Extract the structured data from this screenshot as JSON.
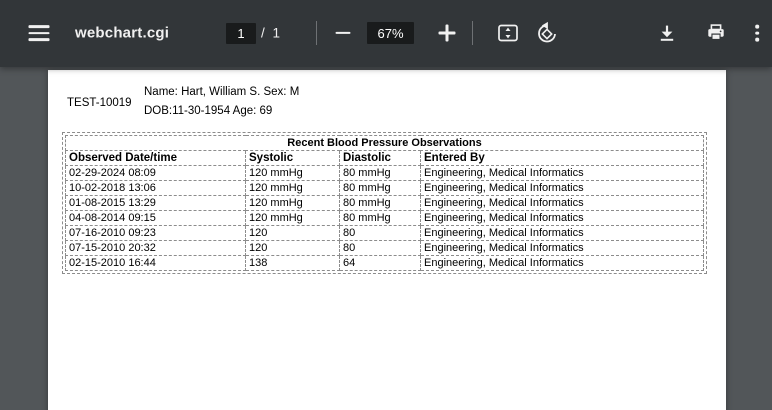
{
  "toolbar": {
    "title": "webchart.cgi",
    "page_current": "1",
    "page_total_label": "/ 1",
    "zoom_level": "67%",
    "icons": {
      "menu": "hamburger-menu",
      "zoom_out": "minus",
      "zoom_in": "plus",
      "fit": "fit-to-page",
      "rotate": "rotate-counterclockwise",
      "download": "download-arrow",
      "print": "printer",
      "more": "vertical-kebab"
    }
  },
  "document": {
    "patient_id": "TEST-10019",
    "name_line": "Name: Hart, William S. Sex: M",
    "dob_line": "DOB:11-30-1954 Age: 69",
    "table": {
      "title": "Recent Blood Pressure Observations",
      "columns": [
        "Observed Date/time",
        "Systolic",
        "Diastolic",
        "Entered By"
      ],
      "rows": [
        [
          "02-29-2024 08:09",
          "120 mmHg",
          "80 mmHg",
          "Engineering, Medical Informatics"
        ],
        [
          "10-02-2018 13:06",
          "120 mmHg",
          "80 mmHg",
          "Engineering, Medical Informatics"
        ],
        [
          "01-08-2015 13:29",
          "120 mmHg",
          "80 mmHg",
          "Engineering, Medical Informatics"
        ],
        [
          "04-08-2014 09:15",
          "120 mmHg",
          "80 mmHg",
          "Engineering, Medical Informatics"
        ],
        [
          "07-16-2010 09:23",
          "120",
          "80",
          "Engineering, Medical Informatics"
        ],
        [
          "07-15-2010 20:32",
          "120",
          "80",
          "Engineering, Medical Informatics"
        ],
        [
          "02-15-2010 16:44",
          "138",
          "64",
          "Engineering, Medical Informatics"
        ]
      ]
    }
  },
  "colors": {
    "toolbar_bg": "#323639",
    "canvas_bg": "#525659",
    "control_box_bg": "#191b1c",
    "toolbar_text": "#f1f1f1",
    "table_border": "#8c8c8c",
    "page_bg": "#ffffff"
  }
}
